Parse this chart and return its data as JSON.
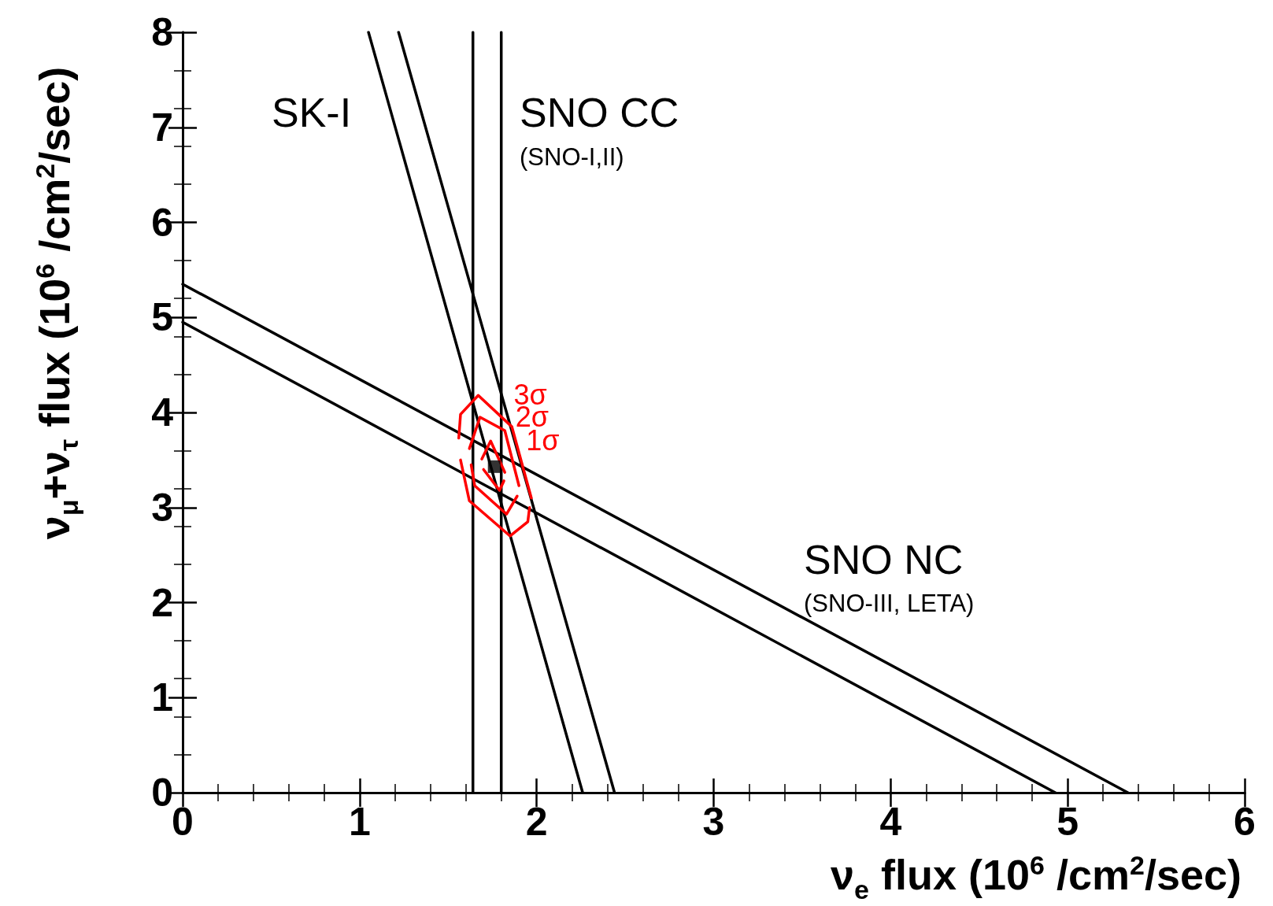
{
  "chart_data": {
    "type": "line",
    "xlabel": "ν$_{e}$ flux (10$^{6}$ /cm$^{2}$/sec)",
    "ylabel": "ν$_{μ}$+ν$_{τ}$ flux (10$^{6}$ /cm$^{2}$/sec)",
    "xlim": [
      0,
      6
    ],
    "xticks": [
      0,
      1,
      2,
      3,
      4,
      5,
      6
    ],
    "ylim": [
      0,
      8
    ],
    "yticks": [
      0,
      1,
      2,
      3,
      4,
      5,
      6,
      7,
      8
    ],
    "grid": false,
    "legend": false,
    "marker": "none",
    "line_style": "solid",
    "series": [
      {
        "color": "#000000",
        "x": [
          1.64,
          1.64
        ],
        "values": [
          0,
          8
        ]
      },
      {
        "color": "#000000",
        "x": [
          1.8,
          1.8
        ],
        "values": [
          0,
          8
        ]
      },
      {
        "color": "#000000",
        "x": [
          1.05,
          2.26
        ],
        "values": [
          8,
          0
        ]
      },
      {
        "color": "#000000",
        "x": [
          1.22,
          2.44
        ],
        "values": [
          8,
          0
        ]
      },
      {
        "color": "#000000",
        "x": [
          0,
          5.34
        ],
        "values": [
          5.35,
          0
        ]
      },
      {
        "color": "#000000",
        "x": [
          0,
          4.93
        ],
        "values": [
          4.95,
          0
        ]
      },
      {
        "name": "3σ",
        "color": "#ff0000",
        "x": [
          1.56,
          1.57,
          1.67,
          1.86,
          1.97
        ],
        "values": [
          3.73,
          3.98,
          4.18,
          3.85,
          3.1
        ]
      },
      {
        "color": "#ff0000",
        "x": [
          1.57,
          1.62,
          1.85,
          1.95,
          1.96
        ],
        "values": [
          3.5,
          3.07,
          2.7,
          2.85,
          3.0
        ]
      },
      {
        "name": "2σ",
        "color": "#ff0000",
        "x": [
          1.62,
          1.68,
          1.82,
          1.9
        ],
        "values": [
          3.62,
          3.95,
          3.81,
          3.23
        ]
      },
      {
        "color": "#ff0000",
        "x": [
          1.63,
          1.65,
          1.83,
          1.89
        ],
        "values": [
          3.45,
          3.23,
          2.93,
          3.12
        ]
      },
      {
        "name": "1σ",
        "color": "#ff0000",
        "x": [
          1.69,
          1.74,
          1.82
        ],
        "values": [
          3.51,
          3.7,
          3.37
        ]
      },
      {
        "color": "#ff0000",
        "x": [
          1.7,
          1.79,
          1.815
        ],
        "values": [
          3.4,
          3.18,
          3.28
        ]
      },
      {
        "type": "scatter",
        "marker": "square",
        "color": "#000000",
        "x": [
          1.76
        ],
        "values": [
          3.43
        ]
      }
    ],
    "annotations": [
      "SK-I",
      "SNO CC",
      "(SNO-I,II)",
      "SNO NC",
      "(SNO-III, LETA)"
    ]
  }
}
